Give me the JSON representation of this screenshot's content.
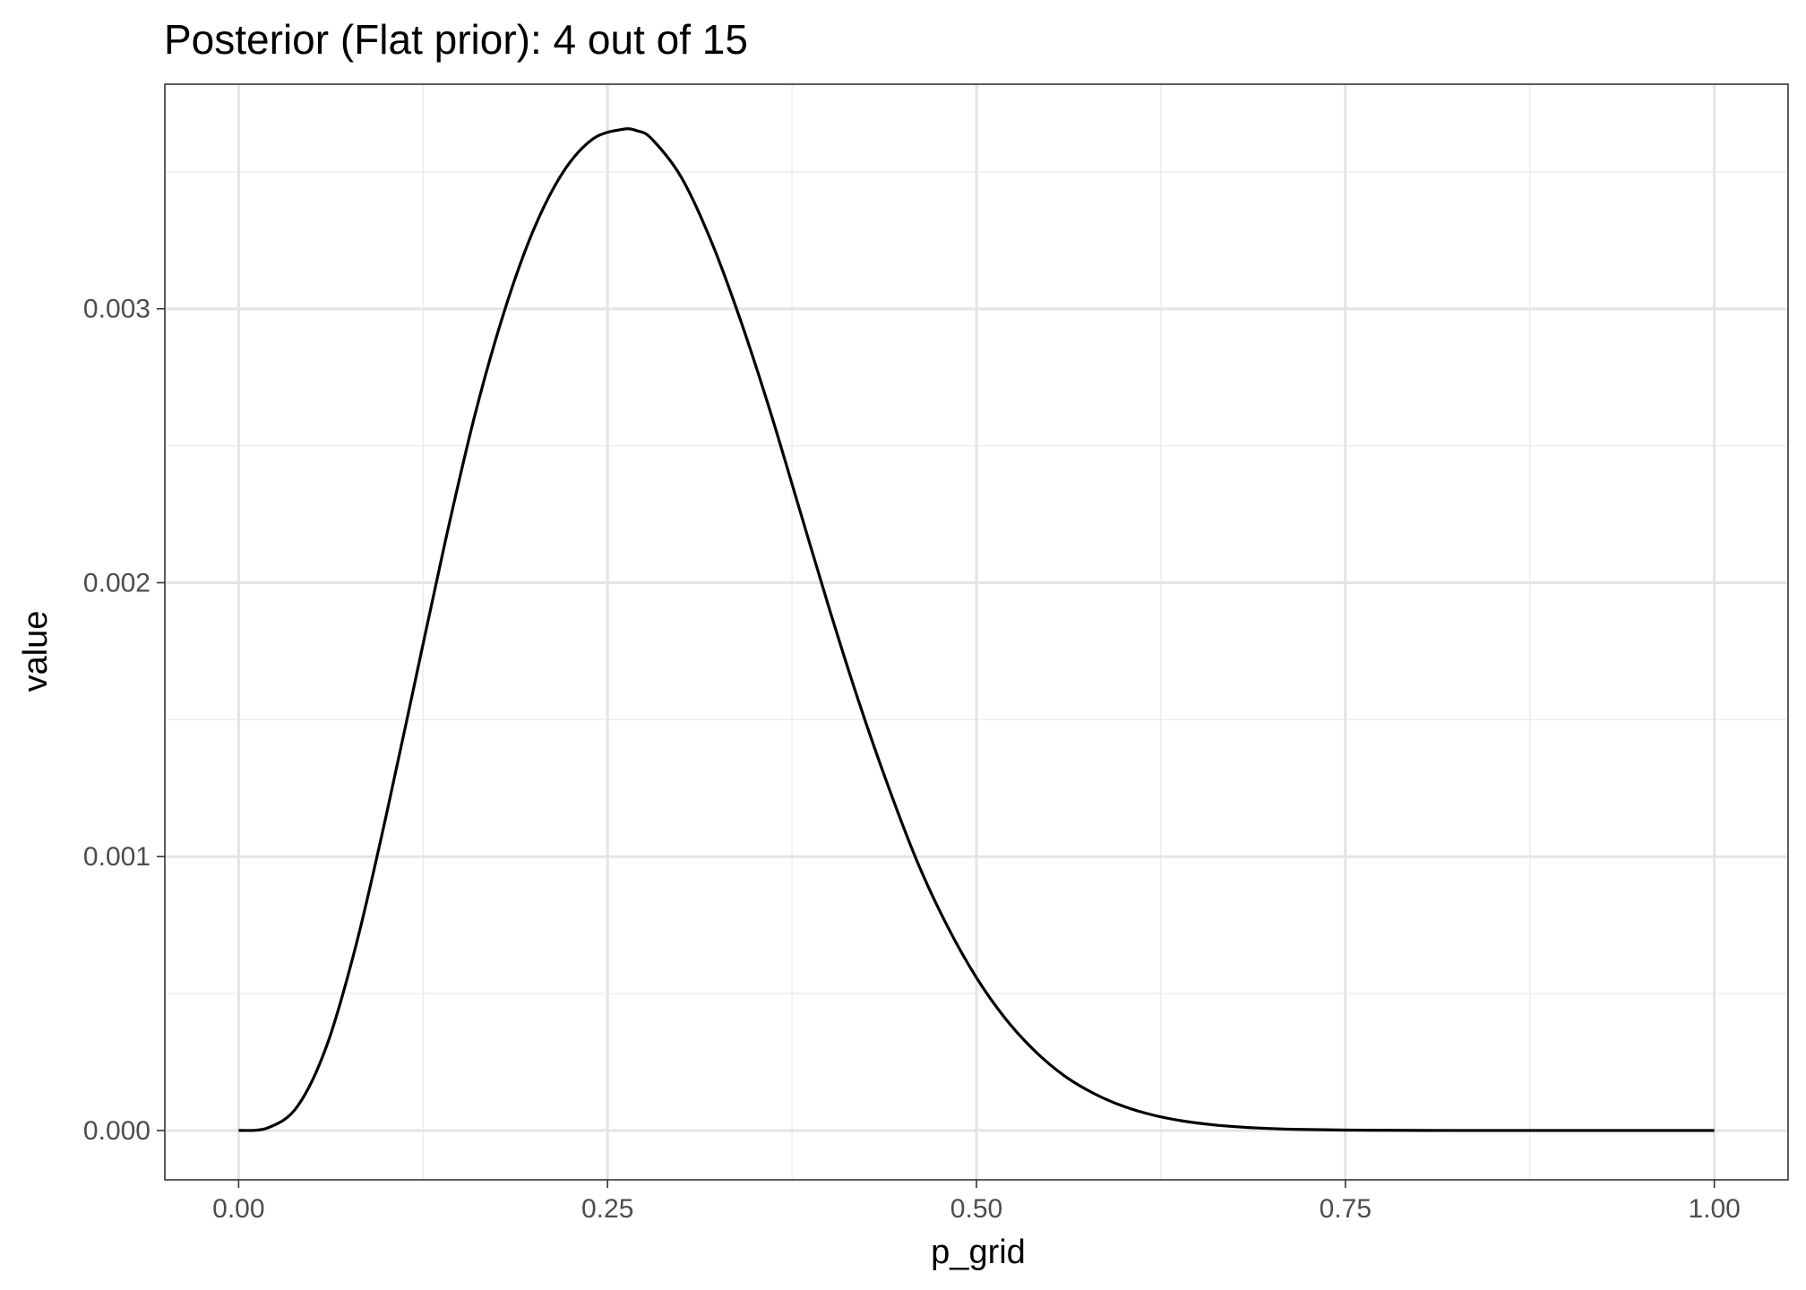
{
  "chart_data": {
    "type": "line",
    "title": "Posterior (Flat prior): 4 out of 15",
    "xlabel": "p_grid",
    "ylabel": "value",
    "xlim": [
      -0.05,
      1.05
    ],
    "ylim": [
      -0.00018,
      0.00382
    ],
    "x_ticks": [
      0.0,
      0.25,
      0.5,
      0.75,
      1.0
    ],
    "x_tick_labels": [
      "0.00",
      "0.25",
      "0.50",
      "0.75",
      "1.00"
    ],
    "y_ticks": [
      0.0,
      0.001,
      0.002,
      0.003
    ],
    "y_tick_labels": [
      "0.000",
      "0.001",
      "0.002",
      "0.003"
    ],
    "grid": true,
    "line_color": "#000000",
    "series": [
      {
        "x": [
          0.0,
          0.02,
          0.04,
          0.06,
          0.08,
          0.1,
          0.12,
          0.14,
          0.16,
          0.18,
          0.2,
          0.22,
          0.24,
          0.26,
          0.27,
          0.28,
          0.3,
          0.32,
          0.34,
          0.36,
          0.38,
          0.4,
          0.42,
          0.44,
          0.46,
          0.48,
          0.5,
          0.52,
          0.54,
          0.56,
          0.58,
          0.6,
          0.62,
          0.64,
          0.66,
          0.68,
          0.7,
          0.72,
          0.75,
          0.8,
          0.85,
          0.9,
          0.95,
          1.0
        ],
        "values": [
          0.0,
          1e-05,
          8.9e-05,
          0.000314,
          0.000686,
          0.00115,
          0.00165,
          0.00215,
          0.00261,
          0.00299,
          0.00329,
          0.0035,
          0.00362,
          0.003655,
          0.00365,
          0.00362,
          0.00348,
          0.00325,
          0.00296,
          0.00263,
          0.00227,
          0.00191,
          0.00157,
          0.00126,
          0.00098,
          0.000749,
          0.000558,
          0.000406,
          0.000288,
          0.000198,
          0.000134,
          8.76e-05,
          5.59e-05,
          3.47e-05,
          2.1e-05,
          1.23e-05,
          7.1e-06,
          3.9e-06,
          1.5e-06,
          3e-07,
          0.0,
          0.0,
          0.0,
          0.0
        ]
      }
    ]
  }
}
